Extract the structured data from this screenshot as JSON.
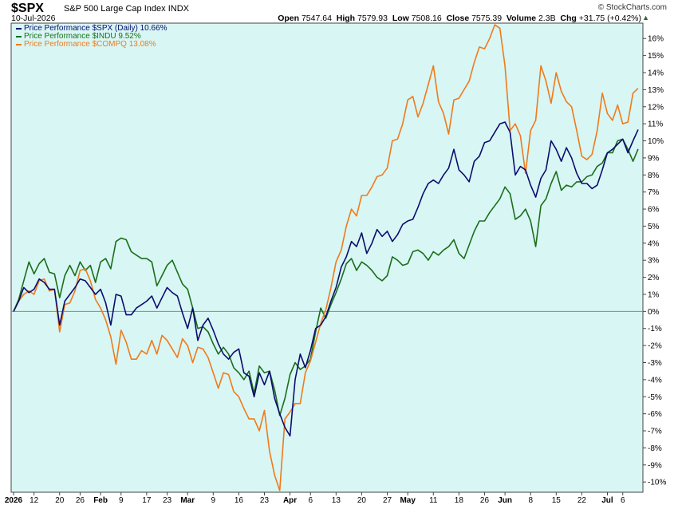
{
  "header": {
    "symbol": "$SPX",
    "name": "S&P 500 Large Cap Index",
    "exchange": "INDX",
    "date": "10-Jul-2026",
    "logo": "© StockCharts.com",
    "open_label": "Open",
    "open": "7547.64",
    "high_label": "High",
    "high": "7579.93",
    "low_label": "Low",
    "low": "7508.16",
    "close_label": "Close",
    "close": "7575.39",
    "volume_label": "Volume",
    "volume": "2.3B",
    "chg_label": "Chg",
    "chg": "+31.75 (+0.42%)",
    "arrow": "▲"
  },
  "colors": {
    "background": "#d8f6f4",
    "spx": "#0c0c6e",
    "indu": "#1b6e1b",
    "compq": "#f07a1a",
    "zero_line": "#888888"
  },
  "chart_data": {
    "type": "line",
    "ylabel": "",
    "ylim": [
      -10.6,
      16.9
    ],
    "y_ticks": [
      16,
      15,
      14,
      13,
      12,
      11,
      10,
      9,
      8,
      7,
      6,
      5,
      4,
      3,
      2,
      1,
      0,
      -1,
      -2,
      -3,
      -4,
      -5,
      -6,
      -7,
      -8,
      -9,
      -10
    ],
    "y_tick_labels": [
      "16%",
      "15%",
      "14%",
      "13%",
      "12%",
      "11%",
      "10%",
      "9%",
      "8%",
      "7%",
      "6%",
      "5%",
      "4%",
      "3%",
      "2%",
      "1%",
      "0%",
      "-1%",
      "-2%",
      "-3%",
      "-4%",
      "-5%",
      "-6%",
      "-7%",
      "-8%",
      "-9%",
      "-10%"
    ],
    "x_ticks": [
      {
        "i": 0,
        "label": "2026",
        "bold": true
      },
      {
        "i": 4,
        "label": "12"
      },
      {
        "i": 9,
        "label": "20"
      },
      {
        "i": 13,
        "label": "26"
      },
      {
        "i": 17,
        "label": "Feb",
        "bold": true
      },
      {
        "i": 21,
        "label": "9"
      },
      {
        "i": 26,
        "label": "17"
      },
      {
        "i": 30,
        "label": "23"
      },
      {
        "i": 34,
        "label": "Mar",
        "bold": true
      },
      {
        "i": 39,
        "label": "9"
      },
      {
        "i": 44,
        "label": "16"
      },
      {
        "i": 49,
        "label": "23"
      },
      {
        "i": 54,
        "label": "Apr",
        "bold": true
      },
      {
        "i": 58,
        "label": "6"
      },
      {
        "i": 63,
        "label": "13"
      },
      {
        "i": 68,
        "label": "20"
      },
      {
        "i": 73,
        "label": "27"
      },
      {
        "i": 77,
        "label": "May",
        "bold": true
      },
      {
        "i": 82,
        "label": "11"
      },
      {
        "i": 87,
        "label": "18"
      },
      {
        "i": 92,
        "label": "26"
      },
      {
        "i": 96,
        "label": "Jun",
        "bold": true
      },
      {
        "i": 101,
        "label": "8"
      },
      {
        "i": 106,
        "label": "15"
      },
      {
        "i": 111,
        "label": "22"
      },
      {
        "i": 116,
        "label": "Jul",
        "bold": true
      },
      {
        "i": 119,
        "label": "6"
      }
    ],
    "x_count": 123,
    "series": [
      {
        "name": "Price Performance $SPX (Daily) 10.66%",
        "key": "spx",
        "values": [
          0,
          0.6,
          1.4,
          1.1,
          1.3,
          1.9,
          1.7,
          1.3,
          1.3,
          -0.8,
          0.6,
          1.0,
          1.4,
          1.9,
          1.8,
          1.4,
          1.0,
          1.3,
          0.5,
          -0.8,
          1.0,
          0.9,
          -0.2,
          -0.2,
          0.2,
          0.4,
          0.6,
          0.9,
          0.2,
          0.8,
          1.4,
          1.1,
          0.9,
          -0.1,
          -1.0,
          0.2,
          -1.7,
          -0.8,
          -0.4,
          -1.1,
          -1.9,
          -2.5,
          -2.8,
          -2.4,
          -2.2,
          -3.6,
          -3.8,
          -5.0,
          -3.6,
          -4.3,
          -3.5,
          -5.1,
          -6.0,
          -6.8,
          -7.3,
          -4.0,
          -2.5,
          -3.3,
          -2.3,
          -1.0,
          -0.8,
          -0.3,
          0.6,
          1.4,
          2.6,
          3.2,
          4.1,
          3.8,
          4.6,
          3.4,
          4.0,
          4.8,
          4.4,
          4.7,
          4.1,
          4.5,
          5.1,
          5.3,
          5.4,
          6.1,
          6.9,
          7.5,
          7.7,
          7.5,
          8.0,
          8.4,
          9.5,
          8.3,
          8.0,
          7.6,
          8.8,
          9.1,
          9.9,
          10.0,
          10.5,
          11.0,
          11.1,
          10.5,
          8.0,
          8.5,
          8.3,
          7.4,
          6.7,
          7.8,
          8.3,
          10.0,
          9.5,
          8.8,
          9.6,
          9.0,
          8.1,
          7.5,
          7.5,
          7.2,
          7.4,
          8.3,
          9.3,
          9.5,
          9.8,
          10.1,
          9.3,
          10.0,
          10.66
        ]
      },
      {
        "name": "Price Performance $INDU 9.52%",
        "key": "indu",
        "values": [
          0,
          0.7,
          1.8,
          2.9,
          2.2,
          2.8,
          3.1,
          2.3,
          2.2,
          0.8,
          2.1,
          2.7,
          2.1,
          2.9,
          2.4,
          2.7,
          1.7,
          2.9,
          3.1,
          2.5,
          4.1,
          4.3,
          4.2,
          3.5,
          3.3,
          3.1,
          3.1,
          2.9,
          1.5,
          2.1,
          2.7,
          3.0,
          2.3,
          1.6,
          1.3,
          0.2,
          -1.0,
          -0.9,
          -1.2,
          -1.9,
          -2.5,
          -2.1,
          -2.5,
          -3.3,
          -3.6,
          -4.0,
          -3.5,
          -4.8,
          -3.2,
          -3.6,
          -3.5,
          -4.6,
          -6.1,
          -5.1,
          -3.7,
          -3.0,
          -3.4,
          -3.2,
          -2.8,
          -1.2,
          0.2,
          -0.4,
          0.4,
          1.1,
          1.9,
          2.8,
          3.1,
          2.4,
          2.9,
          2.7,
          2.4,
          2.0,
          1.8,
          2.1,
          3.2,
          3.0,
          2.7,
          2.8,
          3.5,
          3.6,
          3.4,
          3.0,
          3.5,
          3.3,
          3.6,
          3.8,
          4.2,
          3.4,
          3.1,
          3.9,
          4.7,
          5.3,
          5.3,
          5.8,
          6.2,
          6.6,
          7.3,
          6.9,
          5.4,
          5.6,
          6.0,
          5.3,
          3.8,
          6.2,
          6.6,
          7.5,
          8.2,
          7.1,
          7.4,
          7.3,
          7.6,
          7.6,
          7.9,
          8.0,
          8.5,
          8.7,
          9.3,
          9.3,
          10.0,
          10.1,
          9.5,
          8.8,
          9.52
        ]
      },
      {
        "name": "Price Performance $COMPQ 13.08%",
        "key": "compq",
        "values": [
          0,
          0.6,
          1.0,
          1.2,
          1.0,
          1.8,
          1.9,
          1.2,
          1.3,
          -1.2,
          0.4,
          0.5,
          1.2,
          2.4,
          2.5,
          1.8,
          0.7,
          0.2,
          -0.5,
          -1.5,
          -3.1,
          -1.1,
          -1.8,
          -2.8,
          -2.8,
          -2.3,
          -2.5,
          -1.7,
          -2.5,
          -1.4,
          -1.7,
          -2.2,
          -2.7,
          -1.6,
          -2.0,
          -3.0,
          -2.1,
          -2.2,
          -2.7,
          -3.6,
          -4.5,
          -3.6,
          -3.7,
          -4.7,
          -5.0,
          -5.7,
          -6.3,
          -6.3,
          -7.0,
          -5.8,
          -8.2,
          -9.6,
          -10.5,
          -6.3,
          -5.9,
          -5.4,
          -5.4,
          -3.6,
          -2.9,
          -1.8,
          -0.7,
          0.1,
          1.4,
          2.9,
          3.6,
          5.0,
          6.0,
          5.6,
          6.8,
          6.8,
          7.3,
          7.9,
          8.0,
          8.4,
          10.0,
          10.1,
          11.0,
          12.4,
          12.6,
          11.4,
          12.2,
          13.3,
          14.4,
          12.3,
          11.6,
          10.4,
          12.4,
          12.5,
          13.0,
          13.5,
          14.6,
          15.5,
          15.4,
          16.0,
          16.8,
          16.6,
          14.4,
          10.6,
          11.0,
          10.3,
          8.1,
          10.6,
          11.2,
          14.4,
          13.5,
          12.2,
          14.0,
          12.9,
          12.3,
          12.0,
          10.6,
          9.1,
          8.9,
          9.2,
          10.6,
          12.8,
          11.6,
          11.2,
          12.1,
          11.0,
          11.1,
          12.8,
          13.08
        ]
      }
    ]
  }
}
